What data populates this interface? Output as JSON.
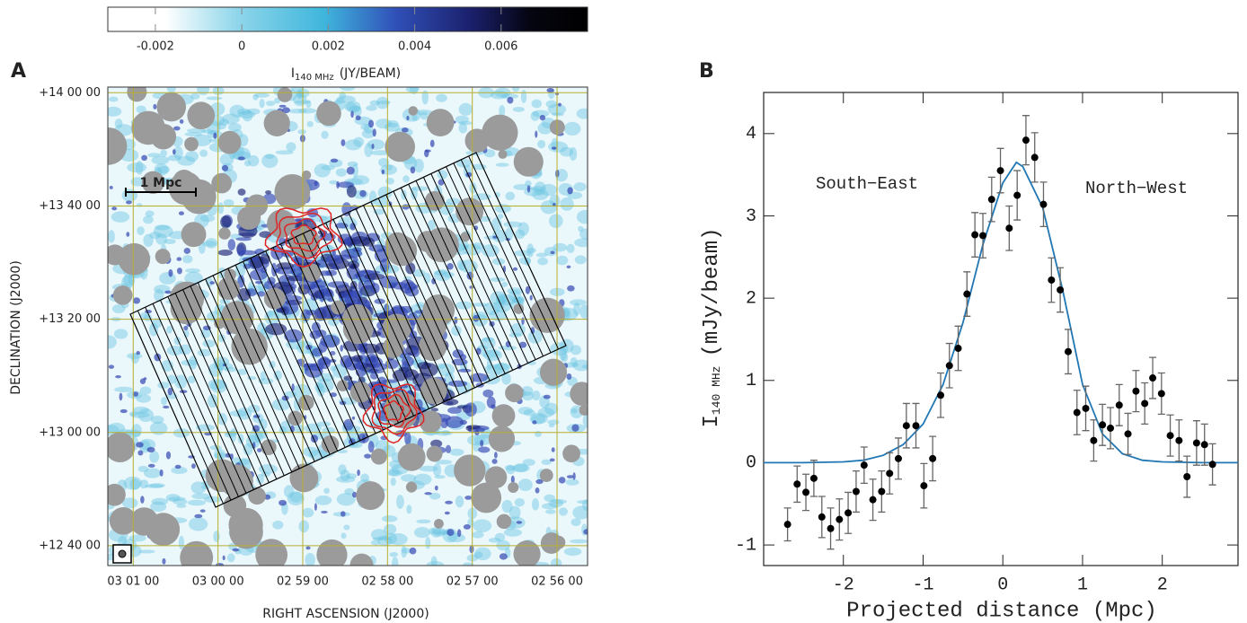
{
  "chart_data": [
    {
      "type": "image",
      "panel": "A",
      "colorbar": {
        "lim": [
          -0.0031,
          0.008
        ],
        "ticks": [
          -0.002,
          0,
          0.002,
          0.004,
          0.006
        ],
        "label": {
          "symbol": "I",
          "subscript": "140 MHz",
          "unit": "(JY/BEAM)"
        }
      },
      "xlabel": "RIGHT ASCENSION (J2000)",
      "ylabel": "DECLINATION (J2000)",
      "xlim": [
        181.3,
        175.64
      ],
      "ylim": [
        756.5,
        841
      ],
      "xticks": [
        {
          "value": 181,
          "label": "03 01 00"
        },
        {
          "value": 180,
          "label": "03 00 00"
        },
        {
          "value": 179,
          "label": "02 59 00"
        },
        {
          "value": 178,
          "label": "02 58 00"
        },
        {
          "value": 177,
          "label": "02 57 00"
        },
        {
          "value": 176,
          "label": "02 56 00"
        }
      ],
      "yticks": [
        {
          "value": 840,
          "label": "+14 00 00"
        },
        {
          "value": 820,
          "label": "+13 40 00"
        },
        {
          "value": 800,
          "label": "+13 20 00"
        },
        {
          "value": 780,
          "label": "+13 00 00"
        },
        {
          "value": 760,
          "label": "+12 40 00"
        }
      ],
      "grid": true,
      "scale_bar": "1 Mpc"
    },
    {
      "type": "scatter",
      "panel": "B",
      "xlabel": "Projected distance (Mpc)",
      "ylabel": {
        "symbol": "I",
        "subscript": "140 MHz",
        "unit": "(mJy/beam)"
      },
      "annotations": [
        "South−East",
        "North−West"
      ],
      "xlim": [
        -3.0,
        2.95
      ],
      "ylim": [
        -1.25,
        4.5
      ],
      "xticks": [
        -2,
        -1,
        0,
        1,
        2
      ],
      "yticks": [
        -1,
        0,
        1,
        2,
        3,
        4
      ],
      "points": {
        "color": "#000000",
        "error_color": "#666666",
        "x": [
          -2.7,
          -2.58,
          -2.47,
          -2.37,
          -2.27,
          -2.16,
          -2.05,
          -1.94,
          -1.84,
          -1.74,
          -1.63,
          -1.52,
          -1.42,
          -1.31,
          -1.21,
          -1.09,
          -0.99,
          -0.88,
          -0.78,
          -0.67,
          -0.56,
          -0.45,
          -0.35,
          -0.25,
          -0.14,
          -0.03,
          0.08,
          0.18,
          0.29,
          0.4,
          0.51,
          0.61,
          0.72,
          0.82,
          0.93,
          1.04,
          1.14,
          1.25,
          1.35,
          1.46,
          1.57,
          1.67,
          1.78,
          1.88,
          1.99,
          2.1,
          2.21,
          2.31,
          2.43,
          2.53,
          2.63
        ],
        "y": [
          -0.75,
          -0.26,
          -0.36,
          -0.19,
          -0.66,
          -0.8,
          -0.69,
          -0.61,
          -0.35,
          -0.03,
          -0.45,
          -0.35,
          -0.13,
          0.05,
          0.45,
          0.45,
          -0.28,
          0.05,
          0.82,
          1.18,
          1.39,
          2.05,
          2.77,
          2.76,
          3.2,
          3.55,
          2.85,
          3.25,
          3.92,
          3.71,
          3.14,
          2.22,
          2.1,
          1.35,
          0.61,
          0.66,
          0.27,
          0.46,
          0.42,
          0.7,
          0.35,
          0.87,
          0.72,
          1.03,
          0.84,
          0.33,
          0.27,
          -0.17,
          0.24,
          0.22,
          -0.02
        ],
        "errors": [
          0.2,
          0.22,
          0.22,
          0.22,
          0.25,
          0.25,
          0.25,
          0.25,
          0.25,
          0.22,
          0.25,
          0.25,
          0.25,
          0.25,
          0.27,
          0.27,
          0.27,
          0.27,
          0.27,
          0.27,
          0.27,
          0.27,
          0.27,
          0.27,
          0.27,
          0.27,
          0.27,
          0.3,
          0.3,
          0.3,
          0.27,
          0.27,
          0.27,
          0.27,
          0.27,
          0.27,
          0.25,
          0.25,
          0.25,
          0.25,
          0.25,
          0.25,
          0.25,
          0.25,
          0.25,
          0.25,
          0.25,
          0.25,
          0.27,
          0.25,
          0.25
        ]
      },
      "fit": {
        "color": "#2077b4",
        "x": [
          -3,
          -2.5,
          -2,
          -1.75,
          -1.5,
          -1.25,
          -1,
          -0.75,
          -0.5,
          -0.25,
          0,
          0.17,
          0.25,
          0.5,
          0.75,
          1,
          1.25,
          1.5,
          1.75,
          2,
          2.5,
          2.95
        ],
        "y": [
          0,
          0,
          0.01,
          0.03,
          0.09,
          0.22,
          0.47,
          0.95,
          1.7,
          2.65,
          3.4,
          3.65,
          3.6,
          3.1,
          2.1,
          0.95,
          0.35,
          0.11,
          0.03,
          0.01,
          0,
          0
        ]
      }
    }
  ]
}
